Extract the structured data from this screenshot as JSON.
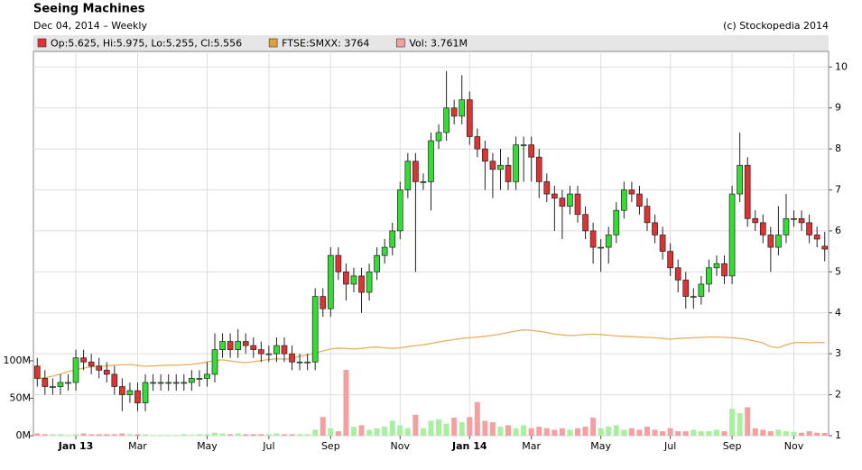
{
  "chart_data": {
    "type": "candlestick",
    "title": "Seeing Machines",
    "subtitle": "Dec 04, 2014 – Weekly",
    "copyright": "(c) Stockopedia 2014",
    "legend": [
      {
        "text": "Op:5.625, Hi:5.975, Lo:5.255, Cl:5.556",
        "color": "#dd3333"
      },
      {
        "text": "FTSE:SMXX: 3764",
        "color": "#e0a040"
      },
      {
        "text": "Vol: 3.761M",
        "color": "#f4a0a0"
      }
    ],
    "categories": [
      null,
      null,
      null,
      null,
      null,
      "Jan 13",
      null,
      null,
      null,
      null,
      null,
      null,
      null,
      "Mar",
      null,
      null,
      null,
      null,
      null,
      null,
      null,
      null,
      "May",
      null,
      null,
      null,
      null,
      null,
      null,
      null,
      "Jul",
      null,
      null,
      null,
      null,
      null,
      null,
      null,
      "Sep",
      null,
      null,
      null,
      null,
      null,
      null,
      null,
      null,
      "Nov",
      null,
      null,
      null,
      null,
      null,
      null,
      null,
      null,
      "Jan 14",
      null,
      null,
      null,
      null,
      null,
      null,
      null,
      "Mar",
      null,
      null,
      null,
      null,
      null,
      null,
      null,
      null,
      "May",
      null,
      null,
      null,
      null,
      null,
      null,
      null,
      null,
      "Jul",
      null,
      null,
      null,
      null,
      null,
      null,
      null,
      "Sep",
      null,
      null,
      null,
      null,
      null,
      null,
      null,
      "Nov",
      null,
      null,
      null,
      null
    ],
    "bold_categories": [
      "Jan 13",
      "Jan 14"
    ],
    "open": [
      2.7,
      2.4,
      2.2,
      2.2,
      2.3,
      2.3,
      2.9,
      2.8,
      2.7,
      2.6,
      2.5,
      2.2,
      2.0,
      2.1,
      1.8,
      2.3,
      2.3,
      2.3,
      2.3,
      2.3,
      2.3,
      2.4,
      2.4,
      2.5,
      3.1,
      3.3,
      3.1,
      3.3,
      3.2,
      3.1,
      3.0,
      3.0,
      3.2,
      3.0,
      2.8,
      2.8,
      2.8,
      4.4,
      4.1,
      5.4,
      5.0,
      4.7,
      4.9,
      4.5,
      5.0,
      5.4,
      5.6,
      6.0,
      7.0,
      7.7,
      7.2,
      7.2,
      8.2,
      8.4,
      9.0,
      8.8,
      9.2,
      8.3,
      8.0,
      7.7,
      7.5,
      7.6,
      7.2,
      8.1,
      8.1,
      7.8,
      7.2,
      6.9,
      6.8,
      6.6,
      6.9,
      6.4,
      6.0,
      5.6,
      5.6,
      5.9,
      6.5,
      7.0,
      6.9,
      6.6,
      6.2,
      5.9,
      5.5,
      5.1,
      4.8,
      4.4,
      4.4,
      4.7,
      5.1,
      5.2,
      4.9,
      6.9,
      7.6,
      6.3,
      6.2,
      5.9,
      5.6,
      5.9,
      6.3,
      6.3,
      6.2,
      5.9,
      5.625
    ],
    "high": [
      2.9,
      2.6,
      2.4,
      2.5,
      2.5,
      3.1,
      3.1,
      3.0,
      2.9,
      2.8,
      2.7,
      2.4,
      2.3,
      2.3,
      2.5,
      2.5,
      2.5,
      2.5,
      2.5,
      2.5,
      2.6,
      2.6,
      2.8,
      3.5,
      3.5,
      3.5,
      3.6,
      3.5,
      3.4,
      3.3,
      3.2,
      3.4,
      3.4,
      3.2,
      3.0,
      3.0,
      4.6,
      4.6,
      5.6,
      5.6,
      5.2,
      5.1,
      5.1,
      5.2,
      5.6,
      5.8,
      6.2,
      7.2,
      7.9,
      7.9,
      7.4,
      8.4,
      8.6,
      9.9,
      9.2,
      9.8,
      9.4,
      8.5,
      8.2,
      7.9,
      8.0,
      7.8,
      8.3,
      8.3,
      8.3,
      8.0,
      7.4,
      7.1,
      7.0,
      7.1,
      7.1,
      6.6,
      6.2,
      5.8,
      6.1,
      6.7,
      7.2,
      7.2,
      7.1,
      6.8,
      6.4,
      6.1,
      5.7,
      5.3,
      5.0,
      4.6,
      4.9,
      5.3,
      5.4,
      5.4,
      7.1,
      8.4,
      7.8,
      6.5,
      6.4,
      6.1,
      6.6,
      6.9,
      6.5,
      6.5,
      6.4,
      6.1,
      5.975
    ],
    "low": [
      2.2,
      2.0,
      2.0,
      2.0,
      2.1,
      2.1,
      2.6,
      2.5,
      2.4,
      2.3,
      2.0,
      1.6,
      1.8,
      1.6,
      1.6,
      2.1,
      2.1,
      2.1,
      2.1,
      2.1,
      2.1,
      2.2,
      2.2,
      2.3,
      2.9,
      2.9,
      2.9,
      3.0,
      2.9,
      2.8,
      2.8,
      2.8,
      2.8,
      2.6,
      2.6,
      2.6,
      2.6,
      3.9,
      3.9,
      4.8,
      4.3,
      4.5,
      4.0,
      4.3,
      4.8,
      5.2,
      5.4,
      5.8,
      6.8,
      5.0,
      7.0,
      6.5,
      8.0,
      8.2,
      8.6,
      8.6,
      8.1,
      7.8,
      7.0,
      6.8,
      7.0,
      7.0,
      7.0,
      7.2,
      7.2,
      6.8,
      6.7,
      6.0,
      5.8,
      6.4,
      6.2,
      5.8,
      5.2,
      5.0,
      5.2,
      5.7,
      6.3,
      6.7,
      6.4,
      6.0,
      5.7,
      5.3,
      4.9,
      4.5,
      4.1,
      4.1,
      4.2,
      4.5,
      4.9,
      4.7,
      4.7,
      6.7,
      6.1,
      6.0,
      5.7,
      5.0,
      5.4,
      5.7,
      6.1,
      6.0,
      5.7,
      5.6,
      5.255
    ],
    "close": [
      2.4,
      2.2,
      2.2,
      2.3,
      2.3,
      2.9,
      2.8,
      2.7,
      2.6,
      2.5,
      2.2,
      2.0,
      2.1,
      1.8,
      2.3,
      2.3,
      2.3,
      2.3,
      2.3,
      2.3,
      2.4,
      2.4,
      2.5,
      3.1,
      3.3,
      3.1,
      3.3,
      3.2,
      3.1,
      3.0,
      3.0,
      3.2,
      3.0,
      2.8,
      2.8,
      2.8,
      4.4,
      4.1,
      5.4,
      5.0,
      4.7,
      4.9,
      4.5,
      5.0,
      5.4,
      5.6,
      6.0,
      7.0,
      7.7,
      7.2,
      7.2,
      8.2,
      8.4,
      9.0,
      8.8,
      9.2,
      8.3,
      8.0,
      7.7,
      7.5,
      7.6,
      7.2,
      8.1,
      8.1,
      7.8,
      7.2,
      6.9,
      6.8,
      6.6,
      6.9,
      6.4,
      6.0,
      5.6,
      5.6,
      5.9,
      6.5,
      7.0,
      6.9,
      6.6,
      6.2,
      5.9,
      5.5,
      5.1,
      4.8,
      4.4,
      4.4,
      4.7,
      5.1,
      5.2,
      4.9,
      6.9,
      7.6,
      6.3,
      6.2,
      5.9,
      5.6,
      5.9,
      6.3,
      6.3,
      6.2,
      5.9,
      5.8,
      5.556
    ],
    "volume": [
      3,
      2,
      2,
      2,
      1,
      2,
      3,
      2,
      2,
      2,
      2,
      3,
      2,
      2,
      2,
      1,
      1,
      1,
      1,
      2,
      1,
      2,
      2,
      4,
      3,
      2,
      3,
      2,
      2,
      2,
      2,
      3,
      2,
      2,
      2,
      2,
      8,
      25,
      10,
      6,
      88,
      12,
      14,
      8,
      10,
      12,
      20,
      14,
      10,
      28,
      10,
      20,
      22,
      16,
      24,
      18,
      25,
      45,
      20,
      18,
      12,
      14,
      10,
      14,
      10,
      12,
      10,
      8,
      10,
      8,
      10,
      12,
      24,
      10,
      12,
      14,
      8,
      10,
      8,
      12,
      8,
      6,
      10,
      6,
      6,
      8,
      6,
      6,
      8,
      6,
      36,
      30,
      38,
      10,
      8,
      6,
      8,
      6,
      5,
      4,
      6,
      4,
      3.761
    ],
    "up_color": "#33dd33",
    "down_color": "#dd3333",
    "up_volume_color": "#a8f0a0",
    "down_volume_color": "#f4a0a0",
    "ylim": [
      1,
      10.38
    ],
    "yticks": [
      1,
      2,
      3,
      4,
      5,
      6,
      7,
      8,
      9,
      10
    ],
    "y2lim": [
      0,
      513
    ],
    "y2ticks": [
      {
        "value": 0,
        "label": "0M"
      },
      {
        "value": 50,
        "label": "50M"
      },
      {
        "value": 100,
        "label": "100M"
      }
    ],
    "ftse": {
      "color": "#e8b060",
      "ylim": [
        1150,
        11937
      ],
      "values": [
        2750,
        2780,
        2820,
        2880,
        2950,
        3000,
        3050,
        3080,
        3100,
        3110,
        3130,
        3140,
        3150,
        3120,
        3100,
        3110,
        3120,
        3130,
        3130,
        3140,
        3150,
        3180,
        3220,
        3260,
        3280,
        3250,
        3220,
        3200,
        3230,
        3260,
        3290,
        3310,
        3300,
        3320,
        3380,
        3420,
        3470,
        3530,
        3580,
        3610,
        3600,
        3580,
        3600,
        3630,
        3640,
        3620,
        3600,
        3620,
        3650,
        3680,
        3700,
        3740,
        3780,
        3820,
        3850,
        3880,
        3900,
        3920,
        3940,
        3970,
        4000,
        4050,
        4090,
        4120,
        4110,
        4080,
        4050,
        4000,
        3980,
        3960,
        3970,
        3990,
        4000,
        3990,
        3970,
        3950,
        3940,
        3930,
        3920,
        3910,
        3900,
        3880,
        3860,
        3880,
        3890,
        3900,
        3910,
        3920,
        3920,
        3910,
        3900,
        3880,
        3850,
        3800,
        3750,
        3650,
        3620,
        3700,
        3760,
        3770,
        3760,
        3770,
        3764
      ]
    },
    "grid": true
  }
}
